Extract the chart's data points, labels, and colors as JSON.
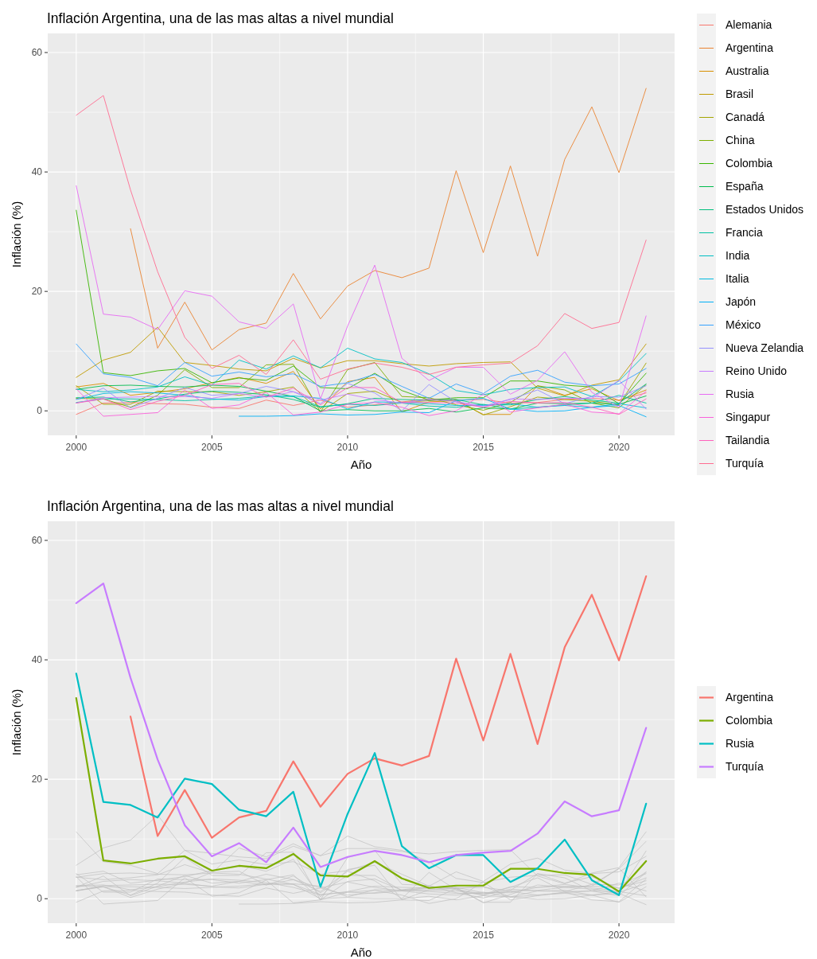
{
  "chart_data": [
    {
      "type": "line",
      "title": "Inflación Argentina, una de las mas altas a nivel mundial",
      "xlabel": "Año",
      "ylabel": "Inflación (%)",
      "x": [
        2000,
        2001,
        2002,
        2003,
        2004,
        2005,
        2006,
        2007,
        2008,
        2009,
        2010,
        2011,
        2012,
        2013,
        2014,
        2015,
        2016,
        2017,
        2018,
        2019,
        2020,
        2021
      ],
      "xlim": [
        1998.95,
        2022.05
      ],
      "xticks": [
        2000,
        2005,
        2010,
        2015,
        2020
      ],
      "ylim": [
        -4.1,
        63.2
      ],
      "yticks": [
        0,
        20,
        40,
        60
      ],
      "grid": true,
      "legend": "right",
      "series": [
        {
          "name": "Alemania",
          "color": "#f8766d",
          "values": [
            -0.6,
            1.3,
            1.4,
            1.2,
            1.1,
            0.6,
            0.4,
            1.8,
            0.9,
            1.8,
            0.6,
            1.0,
            1.5,
            2.0,
            1.8,
            1.9,
            1.3,
            1.4,
            1.9,
            2.1,
            1.8,
            3.0
          ]
        },
        {
          "name": "Argentina",
          "color": "#ea8331",
          "values": [
            null,
            null,
            30.5,
            10.5,
            18.2,
            10.2,
            13.6,
            14.7,
            23.0,
            15.4,
            20.9,
            23.5,
            22.3,
            23.9,
            40.2,
            26.5,
            41.0,
            25.9,
            42.1,
            50.9,
            39.9,
            54.0
          ]
        },
        {
          "name": "Australia",
          "color": "#d89000",
          "values": [
            4.0,
            4.6,
            2.6,
            3.1,
            3.7,
            4.7,
            5.6,
            4.6,
            6.6,
            0.3,
            4.9,
            5.6,
            -0.2,
            1.5,
            1.7,
            -0.6,
            -0.6,
            4.2,
            2.6,
            3.7,
            1.7,
            3.5
          ]
        },
        {
          "name": "Brasil",
          "color": "#c09b00",
          "values": [
            5.6,
            8.5,
            9.8,
            14.0,
            8.1,
            7.6,
            7.0,
            6.7,
            8.8,
            7.2,
            8.4,
            8.4,
            7.9,
            7.5,
            7.9,
            8.1,
            8.2,
            3.8,
            2.5,
            4.3,
            5.2,
            11.2
          ]
        },
        {
          "name": "Canadá",
          "color": "#a3a500",
          "values": [
            4.2,
            1.1,
            1.1,
            3.3,
            3.2,
            3.2,
            2.6,
            3.2,
            4.0,
            -0.2,
            2.9,
            3.3,
            1.4,
            1.7,
            1.9,
            -0.7,
            0.7,
            2.3,
            1.9,
            1.6,
            1.0,
            8.0
          ]
        },
        {
          "name": "China",
          "color": "#7cae00",
          "values": [
            2.1,
            2.0,
            0.6,
            2.6,
            6.9,
            3.9,
            3.9,
            7.7,
            7.8,
            -0.2,
            6.9,
            8.1,
            2.4,
            2.2,
            1.0,
            0.1,
            1.4,
            4.2,
            3.5,
            1.3,
            0.5,
            4.4
          ]
        },
        {
          "name": "Colombia",
          "color": "#39b600",
          "values": [
            33.6,
            6.4,
            5.9,
            6.7,
            7.1,
            4.7,
            5.5,
            5.1,
            7.5,
            3.9,
            3.7,
            6.3,
            3.4,
            1.8,
            2.2,
            2.2,
            5.0,
            5.0,
            4.3,
            4.0,
            1.2,
            6.3
          ]
        },
        {
          "name": "España",
          "color": "#00bb4e",
          "values": [
            3.6,
            4.2,
            4.3,
            4.1,
            4.0,
            4.3,
            4.1,
            3.3,
            2.4,
            0.0,
            0.2,
            0.0,
            0.0,
            0.4,
            -0.2,
            0.5,
            0.3,
            1.3,
            1.2,
            1.3,
            1.1,
            2.5
          ]
        },
        {
          "name": "Estados Unidos",
          "color": "#00bf7d",
          "values": [
            2.2,
            2.3,
            1.5,
            2.0,
            2.8,
            3.3,
            3.1,
            2.7,
            1.9,
            0.6,
            1.2,
            2.1,
            1.9,
            1.8,
            1.9,
            1.0,
            1.0,
            1.9,
            2.4,
            1.8,
            1.3,
            4.5
          ]
        },
        {
          "name": "Francia",
          "color": "#00c1a3",
          "values": [
            1.4,
            2.0,
            2.0,
            1.9,
            1.7,
            1.9,
            2.1,
            2.5,
            2.4,
            0.7,
            1.1,
            0.9,
            1.3,
            0.8,
            0.6,
            1.1,
            0.3,
            0.6,
            1.0,
            1.3,
            2.6,
            1.3
          ]
        },
        {
          "name": "India",
          "color": "#00bfc4",
          "values": [
            3.6,
            3.2,
            3.5,
            4.0,
            5.7,
            4.3,
            8.5,
            7.0,
            9.2,
            7.2,
            10.5,
            8.7,
            8.1,
            6.2,
            3.4,
            2.7,
            3.6,
            3.9,
            4.0,
            2.4,
            5.0,
            9.6
          ]
        },
        {
          "name": "Italia",
          "color": "#00bae0",
          "values": [
            1.9,
            2.9,
            3.2,
            3.0,
            2.6,
            2.0,
            1.8,
            2.4,
            2.5,
            2.1,
            0.3,
            1.5,
            1.4,
            1.2,
            0.9,
            0.9,
            1.2,
            0.6,
            0.9,
            0.6,
            1.2,
            0.5
          ]
        },
        {
          "name": "Japón",
          "color": "#00b0f6",
          "values": [
            null,
            null,
            null,
            null,
            null,
            null,
            -0.9,
            -0.9,
            -0.8,
            -0.5,
            -0.7,
            -0.6,
            -0.2,
            -0.3,
            1.7,
            2.1,
            0.3,
            -0.1,
            0.0,
            0.6,
            0.9,
            -1.0
          ]
        },
        {
          "name": "México",
          "color": "#35a2ff",
          "values": [
            11.2,
            6.2,
            5.6,
            4.2,
            8.1,
            5.8,
            6.5,
            5.7,
            6.2,
            4.1,
            4.7,
            6.1,
            4.1,
            2.1,
            4.5,
            2.9,
            5.8,
            6.8,
            4.8,
            4.2,
            4.5,
            7.1
          ]
        },
        {
          "name": "Nueva Zelandia",
          "color": "#9590ff",
          "values": [
            1.9,
            3.8,
            0.5,
            2.1,
            3.9,
            2.6,
            2.9,
            4.1,
            3.2,
            1.2,
            4.6,
            3.0,
            0.0,
            4.4,
            1.5,
            0.8,
            1.9,
            3.5,
            1.2,
            2.4,
            2.3,
            4.2
          ]
        },
        {
          "name": "Reino Unido",
          "color": "#c77cff",
          "values": [
            1.3,
            2.2,
            2.3,
            2.4,
            2.4,
            2.1,
            2.9,
            2.3,
            3.2,
            1.8,
            2.8,
            1.9,
            1.3,
            1.9,
            1.6,
            0.6,
            2.0,
            1.9,
            2.1,
            2.1,
            5.1,
            0.3
          ]
        },
        {
          "name": "Rusia",
          "color": "#e76bf3",
          "values": [
            37.7,
            16.2,
            15.7,
            13.6,
            20.1,
            19.2,
            14.9,
            13.8,
            17.9,
            2.0,
            14.2,
            24.4,
            8.8,
            5.1,
            7.3,
            7.3,
            2.8,
            5.1,
            9.9,
            3.1,
            0.6,
            15.9
          ]
        },
        {
          "name": "Singapur",
          "color": "#fa62db",
          "values": [
            3.7,
            -0.9,
            -0.6,
            -0.3,
            3.5,
            0.4,
            1.0,
            3.1,
            -0.7,
            -0.2,
            1.1,
            1.4,
            0.6,
            -0.8,
            0.0,
            2.8,
            -0.2,
            0.5,
            1.1,
            -0.2,
            -0.5,
            3.3
          ]
        },
        {
          "name": "Tailandia",
          "color": "#ff62bc",
          "values": [
            1.3,
            2.0,
            0.2,
            1.6,
            2.6,
            4.4,
            4.6,
            2.3,
            3.8,
            1.0,
            3.9,
            3.9,
            1.4,
            1.4,
            1.3,
            0.6,
            1.6,
            1.3,
            1.4,
            0.6,
            -0.6,
            2.0
          ]
        },
        {
          "name": "Turquía",
          "color": "#ff6c91",
          "values": [
            49.5,
            52.8,
            37.0,
            23.3,
            12.3,
            7.1,
            9.3,
            6.1,
            11.9,
            5.3,
            7.0,
            8.0,
            7.3,
            6.1,
            7.3,
            7.7,
            8.0,
            10.9,
            16.3,
            13.8,
            14.8,
            28.6
          ]
        }
      ]
    },
    {
      "type": "line",
      "title": "Inflación Argentina, una de las mas altas a nivel mundial",
      "xlabel": "Año",
      "ylabel": "Inflación (%)",
      "x": [
        2000,
        2001,
        2002,
        2003,
        2004,
        2005,
        2006,
        2007,
        2008,
        2009,
        2010,
        2011,
        2012,
        2013,
        2014,
        2015,
        2016,
        2017,
        2018,
        2019,
        2020,
        2021
      ],
      "xlim": [
        1998.95,
        2022.05
      ],
      "xticks": [
        2000,
        2005,
        2010,
        2015,
        2020
      ],
      "ylim": [
        -4.1,
        63.2
      ],
      "yticks": [
        0,
        20,
        40,
        60
      ],
      "grid": true,
      "legend": "right",
      "series": [
        {
          "color": "#bebebe",
          "values": [
            -0.6,
            1.3,
            1.4,
            1.2,
            1.1,
            0.6,
            0.4,
            1.8,
            0.9,
            1.8,
            0.6,
            1.0,
            1.5,
            2.0,
            1.8,
            1.9,
            1.3,
            1.4,
            1.9,
            2.1,
            1.8,
            3.0
          ]
        },
        {
          "color": "#bebebe",
          "values": [
            4.0,
            4.6,
            2.6,
            3.1,
            3.7,
            4.7,
            5.6,
            4.6,
            6.6,
            0.3,
            4.9,
            5.6,
            -0.2,
            1.5,
            1.7,
            -0.6,
            -0.6,
            4.2,
            2.6,
            3.7,
            1.7,
            3.5
          ]
        },
        {
          "color": "#bebebe",
          "values": [
            5.6,
            8.5,
            9.8,
            14.0,
            8.1,
            7.6,
            7.0,
            6.7,
            8.8,
            7.2,
            8.4,
            8.4,
            7.9,
            7.5,
            7.9,
            8.1,
            8.2,
            3.8,
            2.5,
            4.3,
            5.2,
            11.2
          ]
        },
        {
          "color": "#bebebe",
          "values": [
            4.2,
            1.1,
            1.1,
            3.3,
            3.2,
            3.2,
            2.6,
            3.2,
            4.0,
            -0.2,
            2.9,
            3.3,
            1.4,
            1.7,
            1.9,
            -0.7,
            0.7,
            2.3,
            1.9,
            1.6,
            1.0,
            8.0
          ]
        },
        {
          "color": "#bebebe",
          "values": [
            2.1,
            2.0,
            0.6,
            2.6,
            6.9,
            3.9,
            3.9,
            7.7,
            7.8,
            -0.2,
            6.9,
            8.1,
            2.4,
            2.2,
            1.0,
            0.1,
            1.4,
            4.2,
            3.5,
            1.3,
            0.5,
            4.4
          ]
        },
        {
          "color": "#bebebe",
          "values": [
            3.6,
            4.2,
            4.3,
            4.1,
            4.0,
            4.3,
            4.1,
            3.3,
            2.4,
            0.0,
            0.2,
            0.0,
            0.0,
            0.4,
            -0.2,
            0.5,
            0.3,
            1.3,
            1.2,
            1.3,
            1.1,
            2.5
          ]
        },
        {
          "color": "#bebebe",
          "values": [
            2.2,
            2.3,
            1.5,
            2.0,
            2.8,
            3.3,
            3.1,
            2.7,
            1.9,
            0.6,
            1.2,
            2.1,
            1.9,
            1.8,
            1.9,
            1.0,
            1.0,
            1.9,
            2.4,
            1.8,
            1.3,
            4.5
          ]
        },
        {
          "color": "#bebebe",
          "values": [
            1.4,
            2.0,
            2.0,
            1.9,
            1.7,
            1.9,
            2.1,
            2.5,
            2.4,
            0.7,
            1.1,
            0.9,
            1.3,
            0.8,
            0.6,
            1.1,
            0.3,
            0.6,
            1.0,
            1.3,
            2.6,
            1.3
          ]
        },
        {
          "color": "#bebebe",
          "values": [
            3.6,
            3.2,
            3.5,
            4.0,
            5.7,
            4.3,
            8.5,
            7.0,
            9.2,
            7.2,
            10.5,
            8.7,
            8.1,
            6.2,
            3.4,
            2.7,
            3.6,
            3.9,
            4.0,
            2.4,
            5.0,
            9.6
          ]
        },
        {
          "color": "#bebebe",
          "values": [
            1.9,
            2.9,
            3.2,
            3.0,
            2.6,
            2.0,
            1.8,
            2.4,
            2.5,
            2.1,
            0.3,
            1.5,
            1.4,
            1.2,
            0.9,
            0.9,
            1.2,
            0.6,
            0.9,
            0.6,
            1.2,
            0.5
          ]
        },
        {
          "color": "#bebebe",
          "values": [
            null,
            null,
            null,
            null,
            null,
            null,
            -0.9,
            -0.9,
            -0.8,
            -0.5,
            -0.7,
            -0.6,
            -0.2,
            -0.3,
            1.7,
            2.1,
            0.3,
            -0.1,
            0.0,
            0.6,
            0.9,
            -1.0
          ]
        },
        {
          "color": "#bebebe",
          "values": [
            11.2,
            6.2,
            5.6,
            4.2,
            8.1,
            5.8,
            6.5,
            5.7,
            6.2,
            4.1,
            4.7,
            6.1,
            4.1,
            2.1,
            4.5,
            2.9,
            5.8,
            6.8,
            4.8,
            4.2,
            4.5,
            7.1
          ]
        },
        {
          "color": "#bebebe",
          "values": [
            1.9,
            3.8,
            0.5,
            2.1,
            3.9,
            2.6,
            2.9,
            4.1,
            3.2,
            1.2,
            4.6,
            3.0,
            0.0,
            4.4,
            1.5,
            0.8,
            1.9,
            3.5,
            1.2,
            2.4,
            2.3,
            4.2
          ]
        },
        {
          "color": "#bebebe",
          "values": [
            1.3,
            2.2,
            2.3,
            2.4,
            2.4,
            2.1,
            2.9,
            2.3,
            3.2,
            1.8,
            2.8,
            1.9,
            1.3,
            1.9,
            1.6,
            0.6,
            2.0,
            1.9,
            2.1,
            2.1,
            5.1,
            0.3
          ]
        },
        {
          "color": "#bebebe",
          "values": [
            3.7,
            -0.9,
            -0.6,
            -0.3,
            3.5,
            0.4,
            1.0,
            3.1,
            -0.7,
            -0.2,
            1.1,
            1.4,
            0.6,
            -0.8,
            0.0,
            2.8,
            -0.2,
            0.5,
            1.1,
            -0.2,
            -0.5,
            3.3
          ]
        },
        {
          "color": "#bebebe",
          "values": [
            1.3,
            2.0,
            0.2,
            1.6,
            2.6,
            4.4,
            4.6,
            2.3,
            3.8,
            1.0,
            3.9,
            3.9,
            1.4,
            1.4,
            1.3,
            0.6,
            1.6,
            1.3,
            1.4,
            0.6,
            -0.6,
            2.0
          ]
        },
        {
          "name": "Argentina",
          "color": "#f8766d",
          "values": [
            null,
            null,
            30.5,
            10.5,
            18.2,
            10.2,
            13.6,
            14.7,
            23.0,
            15.4,
            20.9,
            23.5,
            22.3,
            23.9,
            40.2,
            26.5,
            41.0,
            25.9,
            42.1,
            50.9,
            39.9,
            54.0
          ]
        },
        {
          "name": "Colombia",
          "color": "#7cae00",
          "values": [
            33.6,
            6.4,
            5.9,
            6.7,
            7.1,
            4.7,
            5.5,
            5.1,
            7.5,
            3.9,
            3.7,
            6.3,
            3.4,
            1.8,
            2.2,
            2.2,
            5.0,
            5.0,
            4.3,
            4.0,
            1.2,
            6.3
          ]
        },
        {
          "name": "Rusia",
          "color": "#00bfc4",
          "values": [
            37.7,
            16.2,
            15.7,
            13.6,
            20.1,
            19.2,
            14.9,
            13.8,
            17.9,
            2.0,
            14.2,
            24.4,
            8.8,
            5.1,
            7.3,
            7.3,
            2.8,
            5.1,
            9.9,
            3.1,
            0.6,
            15.9
          ]
        },
        {
          "name": "Turquía",
          "color": "#c77cff",
          "values": [
            49.5,
            52.8,
            37.0,
            23.3,
            12.3,
            7.1,
            9.3,
            6.1,
            11.9,
            5.3,
            7.0,
            8.0,
            7.3,
            6.1,
            7.3,
            7.7,
            8.0,
            10.9,
            16.3,
            13.8,
            14.8,
            28.6
          ]
        }
      ]
    }
  ]
}
